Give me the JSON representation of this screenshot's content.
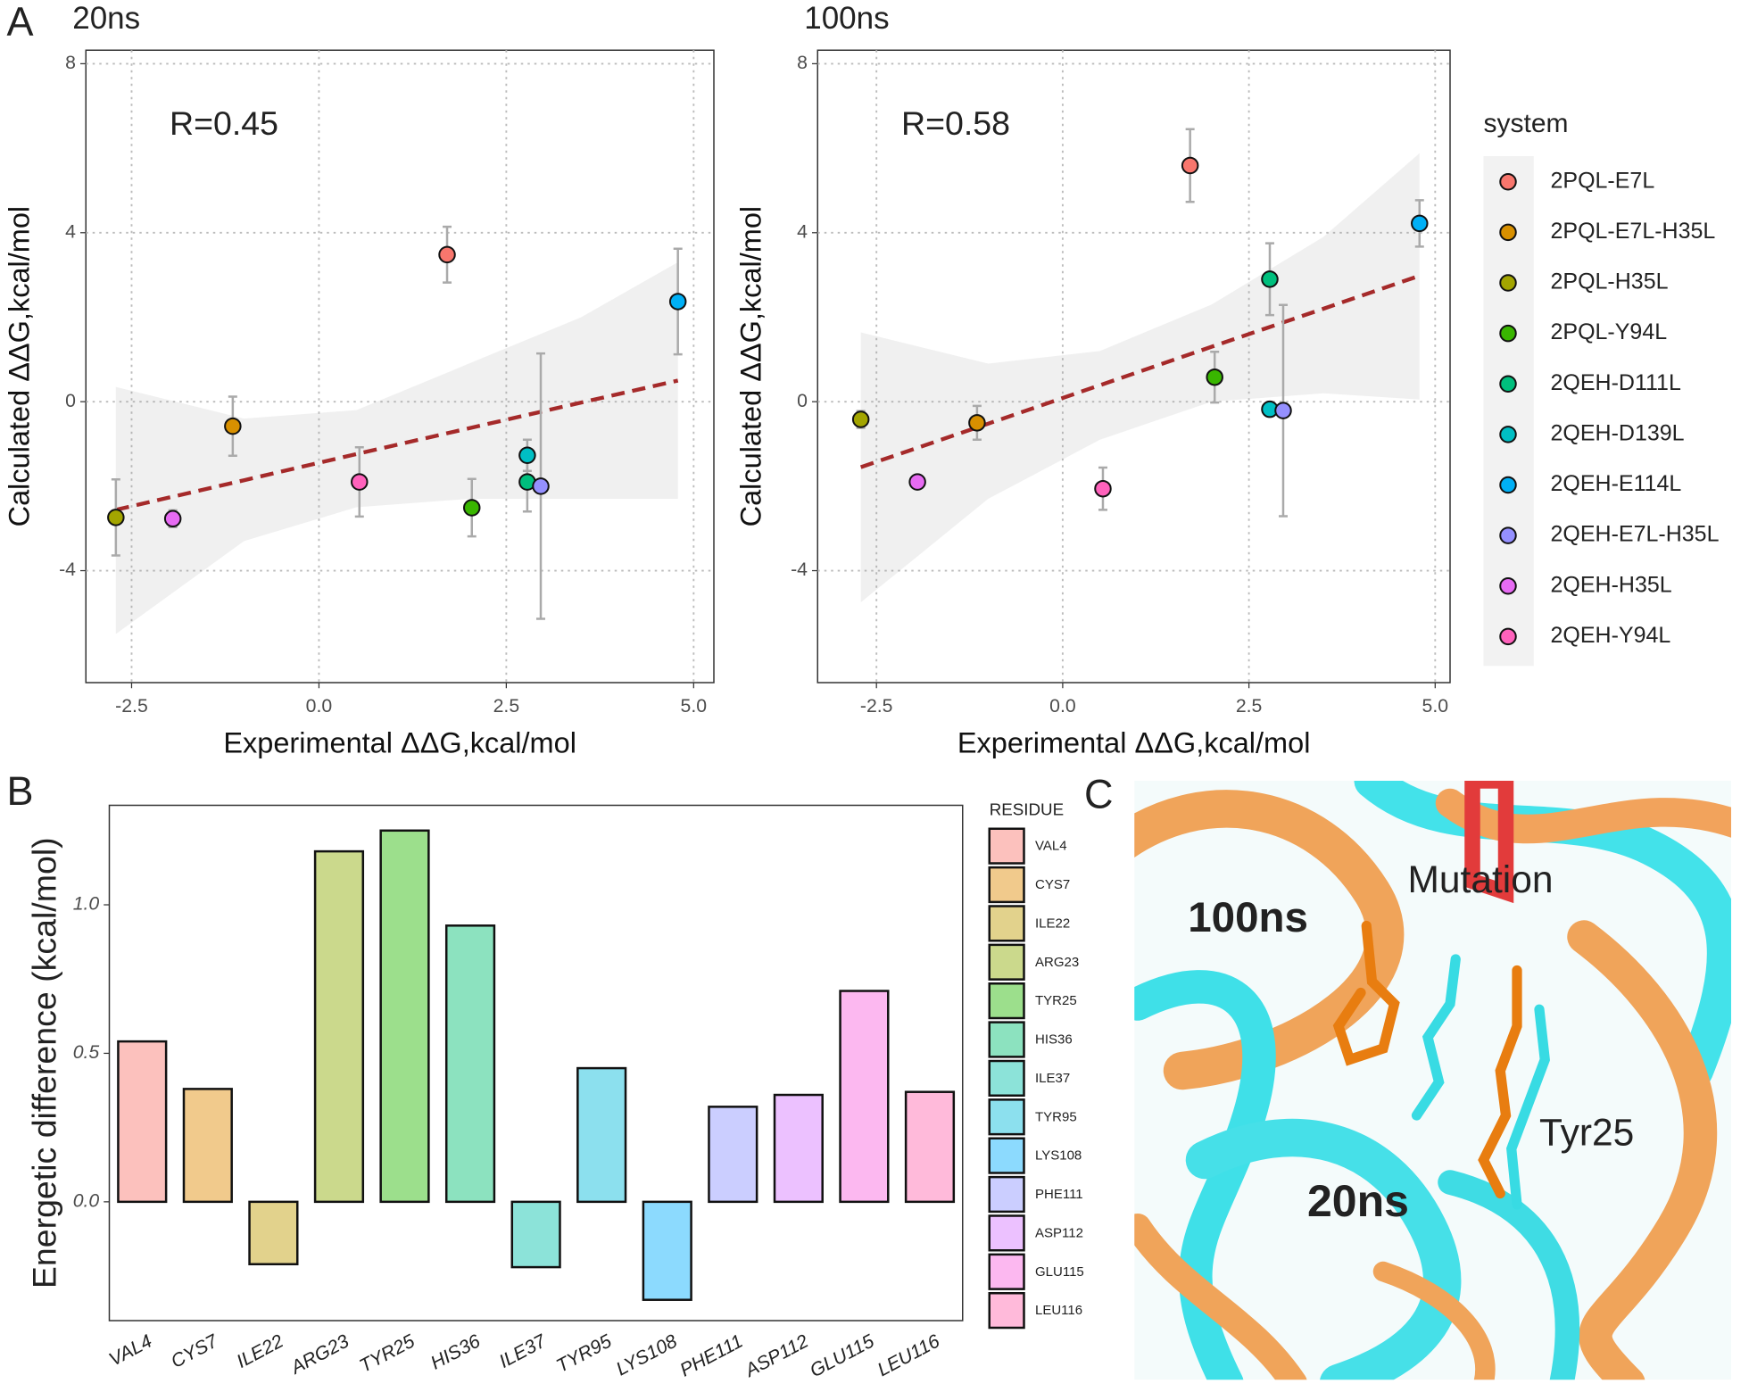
{
  "chart_data": [
    {
      "type": "scatter",
      "panel_label": "A",
      "title": "20ns",
      "xlabel": "Experimental ΔΔG,kcal/mol",
      "ylabel": "Calculated ΔΔG,kcal/mol",
      "annotation": "R=0.45",
      "xlim": [
        -3.11,
        5.27
      ],
      "ylim": [
        -6.65,
        8.32
      ],
      "xticks": [
        -2.5,
        {
          "value": 0,
          "label": "0.0"
        },
        2.5,
        {
          "value": 5,
          "label": "5.0"
        }
      ],
      "yticks": [
        -4,
        0,
        4,
        8
      ],
      "series": [
        {
          "color": "#F8766D",
          "x": [
            1.71
          ],
          "values": [
            3.48
          ],
          "errors": [
            0.66
          ]
        },
        {
          "color": "#D89000",
          "x": [
            -1.15
          ],
          "values": [
            -0.58
          ],
          "errors": [
            0.7
          ]
        },
        {
          "color": "#A3A500",
          "x": [
            -2.71
          ],
          "values": [
            -2.74
          ],
          "errors": [
            0.9
          ]
        },
        {
          "color": "#39B600",
          "x": [
            2.04
          ],
          "values": [
            -2.51
          ],
          "errors": [
            0.68
          ]
        },
        {
          "color": "#00BF7D",
          "x": [
            2.78
          ],
          "values": [
            -1.9
          ],
          "errors": [
            0.7
          ]
        },
        {
          "color": "#00BFC4",
          "x": [
            2.78
          ],
          "values": [
            -1.27
          ],
          "errors": [
            0.37
          ]
        },
        {
          "color": "#00B0F6",
          "x": [
            4.79
          ],
          "values": [
            2.37
          ],
          "errors": [
            1.25
          ]
        },
        {
          "color": "#9590FF",
          "x": [
            2.96
          ],
          "values": [
            -2.0
          ],
          "errors": [
            3.14
          ]
        },
        {
          "color": "#E76BF3",
          "x": [
            -1.95
          ],
          "values": [
            -2.77
          ],
          "errors": [
            0.2
          ]
        },
        {
          "color": "#FF62BC",
          "x": [
            0.54
          ],
          "values": [
            -1.9
          ],
          "errors": [
            0.82
          ]
        }
      ],
      "fit": {
        "x": [
          -2.71,
          -1,
          0.5,
          2,
          3.5,
          4.79
        ],
        "values": [
          -2.56,
          -1.86,
          -1.24,
          -0.63,
          -0.02,
          0.5
        ],
        "lower": [
          -5.5,
          -3.3,
          -2.5,
          -2.3,
          -2.3,
          -2.3
        ],
        "upper": [
          0.35,
          -0.4,
          -0.2,
          0.9,
          2.0,
          3.3
        ]
      }
    },
    {
      "type": "scatter",
      "title": "100ns",
      "xlabel": "Experimental ΔΔG,kcal/mol",
      "ylabel": "Calculated ΔΔG,kcal/mol",
      "annotation": "R=0.58",
      "legend_title": "system",
      "xlim": [
        -3.29,
        5.2
      ],
      "ylim": [
        -6.65,
        8.32
      ],
      "xticks": [
        -2.5,
        {
          "value": 0,
          "label": "0.0"
        },
        2.5,
        {
          "value": 5,
          "label": "5.0"
        }
      ],
      "yticks": [
        -4,
        0,
        4,
        8
      ],
      "series": [
        {
          "name": "2PQL-E7L",
          "color": "#F8766D",
          "x": [
            1.71
          ],
          "values": [
            5.59
          ],
          "errors": [
            0.86
          ]
        },
        {
          "name": "2PQL-E7L-H35L",
          "color": "#D89000",
          "x": [
            -1.15
          ],
          "values": [
            -0.5
          ],
          "errors": [
            0.4
          ]
        },
        {
          "name": "2PQL-H35L",
          "color": "#A3A500",
          "x": [
            -2.71
          ],
          "values": [
            -0.42
          ],
          "errors": [
            0.2
          ]
        },
        {
          "name": "2PQL-Y94L",
          "color": "#39B600",
          "x": [
            2.04
          ],
          "values": [
            0.58
          ],
          "errors": [
            0.6
          ]
        },
        {
          "name": "2QEH-D111L",
          "color": "#00BF7D",
          "x": [
            2.78
          ],
          "values": [
            2.9
          ],
          "errors": [
            0.85
          ]
        },
        {
          "name": "2QEH-D139L",
          "color": "#00BFC4",
          "x": [
            2.78
          ],
          "values": [
            -0.18
          ],
          "errors": [
            0.1
          ]
        },
        {
          "name": "2QEH-E114L",
          "color": "#00B0F6",
          "x": [
            4.79
          ],
          "values": [
            4.22
          ],
          "errors": [
            0.55
          ]
        },
        {
          "name": "2QEH-E7L-H35L",
          "color": "#9590FF",
          "x": [
            2.96
          ],
          "values": [
            -0.21
          ],
          "errors": [
            2.5
          ]
        },
        {
          "name": "2QEH-H35L",
          "color": "#E76BF3",
          "x": [
            -1.95
          ],
          "values": [
            -1.9
          ],
          "errors": [
            0.1
          ]
        },
        {
          "name": "2QEH-Y94L",
          "color": "#FF62BC",
          "x": [
            0.54
          ],
          "values": [
            -2.06
          ],
          "errors": [
            0.5
          ]
        }
      ],
      "fit": {
        "x": [
          -2.71,
          -1,
          0.5,
          2,
          3.5,
          4.79
        ],
        "values": [
          -1.55,
          -0.52,
          0.39,
          1.3,
          2.2,
          2.98
        ],
        "lower": [
          -4.75,
          -2.3,
          -0.9,
          0.0,
          0.2,
          0.05
        ],
        "upper": [
          1.64,
          0.9,
          1.2,
          2.3,
          3.9,
          5.88
        ]
      }
    },
    {
      "type": "bar",
      "panel_label": "B",
      "ylabel": "Energetic difference (kcal/mol)",
      "legend_title": "RESIDUE",
      "categories": [
        "VAL4",
        "CYS7",
        "ILE22",
        "ARG23",
        "TYR25",
        "HIS36",
        "ILE37",
        "TYR95",
        "LYS108",
        "PHE111",
        "ASP112",
        "GLU115",
        "LEU116"
      ],
      "values": [
        0.54,
        0.38,
        -0.21,
        1.18,
        1.25,
        0.93,
        -0.22,
        0.45,
        -0.33,
        0.32,
        0.36,
        0.71,
        0.37
      ],
      "colors": [
        "#F8766D",
        "#E18A00",
        "#BE9C00",
        "#8CAB00",
        "#24B700",
        "#00BE70",
        "#00C1AB",
        "#00BBDA",
        "#00ACFC",
        "#8B93FF",
        "#D575FE",
        "#F962DD",
        "#FF65AC"
      ],
      "ylim": [
        -0.4,
        1.335
      ],
      "yticks": [
        {
          "value": 0,
          "label": "0.0"
        },
        0.5,
        {
          "value": 1,
          "label": "1.0"
        }
      ]
    }
  ],
  "structure_image": {
    "panel_label": "C",
    "labels": [
      "100ns",
      "Mutation",
      "Tyr25",
      "20ns"
    ]
  }
}
